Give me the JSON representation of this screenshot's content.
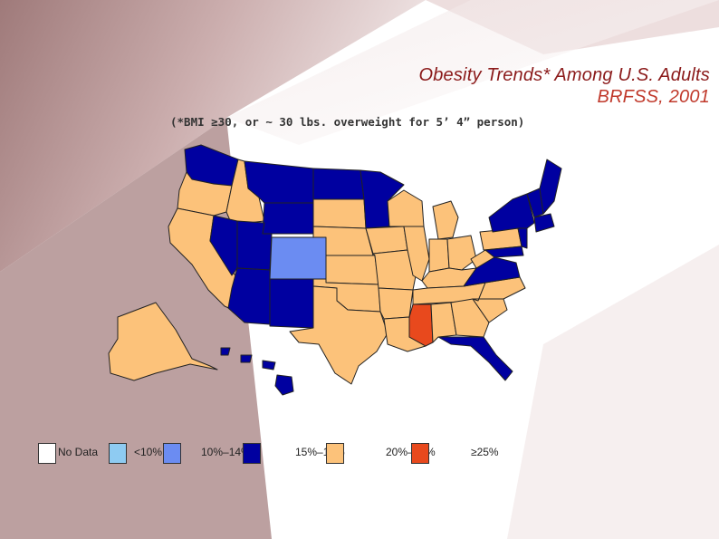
{
  "title": {
    "line1": "Obesity Trends* Among U.S. Adults",
    "line2": "BRFSS, 2001"
  },
  "subtitle": "(*BMI ≥30, or ~ 30 lbs. overweight for 5’ 4” person)",
  "legend": [
    {
      "label": "No Data",
      "color": "#ffffff"
    },
    {
      "label": "<10%",
      "color": "#8ecbf2"
    },
    {
      "label": "10%–14%",
      "color": "#6b8cf2"
    },
    {
      "label": "15%–19%",
      "color": "#0000a0"
    },
    {
      "label": "20%–24%",
      "color": "#fcc27a"
    },
    {
      "label": "≥25%",
      "color": "#e8491d"
    }
  ],
  "colors": {
    "bg_dark": "#8b6b6b",
    "bg_light": "#f2e6e6",
    "title_dark": "#8b1a1a",
    "title_red": "#c0392b"
  }
}
